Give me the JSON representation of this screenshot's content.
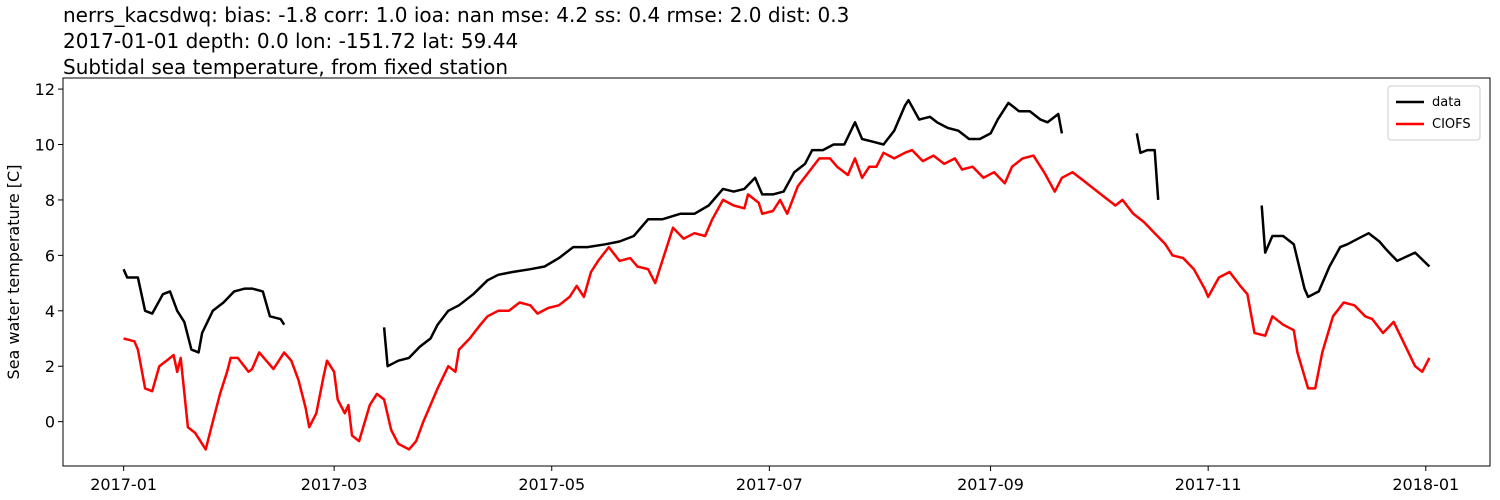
{
  "chart_data": {
    "type": "line",
    "title": [
      "nerrs_kacsdwq: bias: -1.8  corr: 1.0  ioa: nan  mse: 4.2  ss: 0.4  rmse: 2.0  dist: 0.3",
      "2017-01-01 depth: 0.0 lon: -151.72 lat: 59.44",
      "Subtidal sea temperature, from fixed station"
    ],
    "y_label": "Sea water temperature [C]",
    "xlim": [
      -17,
      383
    ],
    "ylim": [
      -1.6,
      12.4
    ],
    "xticks": [
      {
        "value": 0,
        "label": "2017-01"
      },
      {
        "value": 59,
        "label": "2017-03"
      },
      {
        "value": 120,
        "label": "2017-05"
      },
      {
        "value": 181,
        "label": "2017-07"
      },
      {
        "value": 243,
        "label": "2017-09"
      },
      {
        "value": 304,
        "label": "2017-11"
      },
      {
        "value": 365,
        "label": "2018-01"
      }
    ],
    "yticks": [
      0,
      2,
      4,
      6,
      8,
      10,
      12
    ],
    "legend": "upper right",
    "series": [
      {
        "name": "data",
        "color": "#000000",
        "x": [
          0,
          1,
          4,
          6,
          8,
          11,
          13,
          15,
          17,
          19,
          21,
          22,
          25,
          28,
          31,
          34,
          36,
          39,
          41,
          44,
          45,
          60,
          73,
          74,
          77,
          80,
          83,
          86,
          88,
          91,
          94,
          98,
          102,
          105,
          109,
          114,
          118,
          122,
          126,
          130,
          135,
          139,
          143,
          147,
          151,
          156,
          160,
          164,
          168,
          171,
          174,
          177,
          179,
          182,
          185,
          188,
          191,
          193,
          196,
          199,
          202,
          205,
          207,
          210,
          213,
          216,
          219,
          220,
          223,
          226,
          228,
          231,
          234,
          237,
          240,
          243,
          245,
          248,
          251,
          254,
          257,
          259,
          262,
          263,
          270,
          284,
          285,
          287,
          289,
          290,
          300,
          319,
          320,
          322,
          325,
          328,
          331,
          332,
          335,
          338,
          341,
          343,
          346,
          349,
          352,
          354,
          357,
          362,
          366
        ],
        "values": [
          5.5,
          5.2,
          5.2,
          4.0,
          3.9,
          4.6,
          4.7,
          4.0,
          3.6,
          2.6,
          2.5,
          3.2,
          4.0,
          4.3,
          4.7,
          4.8,
          4.8,
          4.7,
          3.8,
          3.7,
          3.5,
          null,
          3.4,
          2.0,
          2.2,
          2.3,
          2.7,
          3.0,
          3.5,
          4.0,
          4.2,
          4.6,
          5.1,
          5.3,
          5.4,
          5.5,
          5.6,
          5.9,
          6.3,
          6.3,
          6.4,
          6.5,
          6.7,
          7.3,
          7.3,
          7.5,
          7.5,
          7.8,
          8.4,
          8.3,
          8.4,
          8.8,
          8.2,
          8.2,
          8.3,
          9.0,
          9.3,
          9.8,
          9.8,
          10.0,
          10.0,
          10.8,
          10.2,
          10.1,
          10.0,
          10.5,
          11.4,
          11.6,
          10.9,
          11.0,
          10.8,
          10.6,
          10.5,
          10.2,
          10.2,
          10.4,
          10.9,
          11.5,
          11.2,
          11.2,
          10.9,
          10.8,
          11.1,
          10.4,
          null,
          10.4,
          9.7,
          9.8,
          9.8,
          8.0,
          null,
          7.8,
          6.1,
          6.7,
          6.7,
          6.4,
          4.8,
          4.5,
          4.7,
          5.6,
          6.3,
          6.4,
          6.6,
          6.8,
          6.5,
          6.2,
          5.8,
          6.1,
          5.6
        ]
      },
      {
        "name": "CIOFS",
        "color": "#ff0000",
        "x": [
          0,
          3,
          4,
          6,
          8,
          10,
          12,
          14,
          15,
          16,
          18,
          20,
          21,
          23,
          25,
          27,
          29,
          30,
          32,
          35,
          36,
          38,
          40,
          42,
          45,
          47,
          49,
          51,
          52,
          54,
          56,
          57,
          59,
          60,
          62,
          63,
          64,
          66,
          69,
          71,
          73,
          75,
          77,
          80,
          82,
          84,
          86,
          88,
          91,
          93,
          94,
          97,
          100,
          102,
          105,
          108,
          111,
          114,
          116,
          119,
          122,
          125,
          127,
          129,
          131,
          133,
          136,
          139,
          142,
          144,
          147,
          149,
          151,
          154,
          157,
          160,
          163,
          165,
          168,
          171,
          174,
          175,
          178,
          179,
          182,
          184,
          186,
          189,
          192,
          195,
          198,
          200,
          203,
          205,
          207,
          209,
          211,
          213,
          216,
          219,
          221,
          224,
          227,
          230,
          233,
          235,
          238,
          241,
          244,
          247,
          249,
          252,
          255,
          258,
          261,
          263,
          266,
          269,
          272,
          275,
          278,
          280,
          283,
          286,
          289,
          292,
          294,
          297,
          300,
          303,
          304,
          307,
          310,
          313,
          315,
          317,
          320,
          322,
          325,
          328,
          329,
          332,
          334,
          336,
          339,
          342,
          345,
          348,
          350,
          353,
          356,
          359,
          362,
          364,
          366
        ],
        "values": [
          3.0,
          2.9,
          2.6,
          1.2,
          1.1,
          2.0,
          2.2,
          2.4,
          1.8,
          2.3,
          -0.2,
          -0.4,
          -0.6,
          -1.0,
          0.0,
          1.0,
          1.8,
          2.3,
          2.3,
          1.8,
          1.9,
          2.5,
          2.2,
          1.9,
          2.5,
          2.2,
          1.5,
          0.5,
          -0.2,
          0.3,
          1.6,
          2.2,
          1.8,
          0.8,
          0.3,
          0.6,
          -0.5,
          -0.7,
          0.6,
          1.0,
          0.8,
          -0.3,
          -0.8,
          -1.0,
          -0.7,
          0.0,
          0.6,
          1.2,
          2.0,
          1.8,
          2.6,
          3.0,
          3.5,
          3.8,
          4.0,
          4.0,
          4.3,
          4.2,
          3.9,
          4.1,
          4.2,
          4.5,
          4.9,
          4.5,
          5.4,
          5.8,
          6.3,
          5.8,
          5.9,
          5.6,
          5.5,
          5.0,
          5.8,
          7.0,
          6.6,
          6.8,
          6.7,
          7.3,
          8.0,
          7.8,
          7.7,
          8.2,
          7.9,
          7.5,
          7.6,
          8.0,
          7.5,
          8.5,
          9.0,
          9.5,
          9.5,
          9.2,
          8.9,
          9.5,
          8.8,
          9.2,
          9.2,
          9.7,
          9.5,
          9.7,
          9.8,
          9.4,
          9.6,
          9.3,
          9.5,
          9.1,
          9.2,
          8.8,
          9.0,
          8.6,
          9.2,
          9.5,
          9.6,
          9.0,
          8.3,
          8.8,
          9.0,
          8.7,
          8.4,
          8.1,
          7.8,
          8.0,
          7.5,
          7.2,
          6.8,
          6.4,
          6.0,
          5.9,
          5.5,
          4.8,
          4.5,
          5.2,
          5.4,
          4.9,
          4.6,
          3.2,
          3.1,
          3.8,
          3.5,
          3.3,
          2.5,
          1.2,
          1.2,
          2.5,
          3.8,
          4.3,
          4.2,
          3.8,
          3.7,
          3.2,
          3.6,
          2.8,
          2.0,
          1.8,
          2.3
        ]
      }
    ]
  }
}
